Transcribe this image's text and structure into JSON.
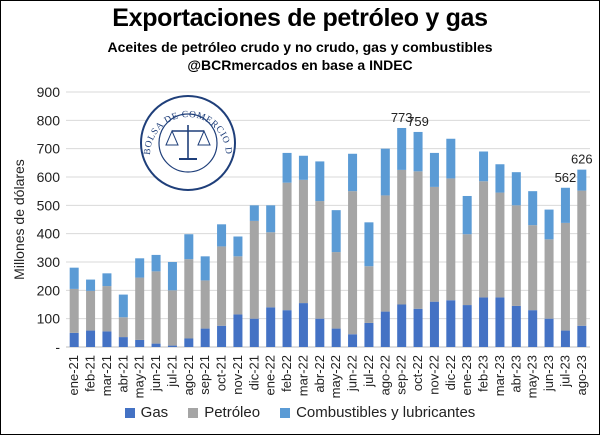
{
  "header": {
    "title": "Exportaciones de petróleo y gas",
    "subtitle": "Aceites de petróleo crudo y no crudo, gas y combustibles",
    "source": "@BCRmercados en base a INDEC"
  },
  "logo": {
    "text": "BOLSA DE COMERCIO DE ROSARIO"
  },
  "colors": {
    "gas": "#4472c4",
    "petroleo": "#a5a5a5",
    "combustibles": "#5b9bd5"
  },
  "chart_data": {
    "type": "bar",
    "stacked": true,
    "ylabel": "Millones de dólares",
    "ylim": [
      0,
      900
    ],
    "yticks": [
      "-",
      "100",
      "200",
      "300",
      "400",
      "500",
      "600",
      "700",
      "800",
      "900"
    ],
    "grid": true,
    "legend_position": "bottom",
    "categories": [
      "ene-21",
      "feb-21",
      "mar-21",
      "abr-21",
      "may-21",
      "jun-21",
      "jul-21",
      "ago-21",
      "sep-21",
      "oct-21",
      "nov-21",
      "dic-21",
      "ene-22",
      "feb-22",
      "mar-22",
      "abr-22",
      "may-22",
      "jun-22",
      "jul-22",
      "ago-22",
      "sep-22",
      "oct-22",
      "nov-22",
      "dic-22",
      "ene-23",
      "feb-23",
      "mar-23",
      "abr-23",
      "may-23",
      "jun-23",
      "jul-23",
      "ago-23"
    ],
    "series": [
      {
        "name": "Gas",
        "values": [
          50,
          58,
          55,
          35,
          25,
          12,
          5,
          30,
          65,
          75,
          115,
          100,
          140,
          130,
          155,
          100,
          65,
          45,
          85,
          125,
          150,
          135,
          160,
          165,
          148,
          175,
          175,
          145,
          130,
          100,
          58,
          75
        ]
      },
      {
        "name": "Petróleo",
        "values": [
          155,
          140,
          160,
          70,
          220,
          255,
          195,
          280,
          170,
          280,
          205,
          345,
          265,
          450,
          435,
          415,
          270,
          505,
          200,
          410,
          475,
          485,
          405,
          430,
          250,
          410,
          370,
          355,
          300,
          280,
          380,
          477
        ]
      },
      {
        "name": "Combustibles y lubricantes",
        "values": [
          75,
          40,
          45,
          80,
          68,
          58,
          100,
          88,
          85,
          78,
          70,
          55,
          95,
          105,
          85,
          140,
          148,
          132,
          155,
          165,
          148,
          139,
          120,
          140,
          135,
          105,
          100,
          117,
          120,
          105,
          124,
          74
        ]
      }
    ],
    "annotations": [
      {
        "category": "sep-22",
        "label": "773"
      },
      {
        "category": "oct-22",
        "label": "759"
      },
      {
        "category": "jul-23",
        "label": "562"
      },
      {
        "category": "ago-23",
        "label": "626"
      }
    ]
  }
}
